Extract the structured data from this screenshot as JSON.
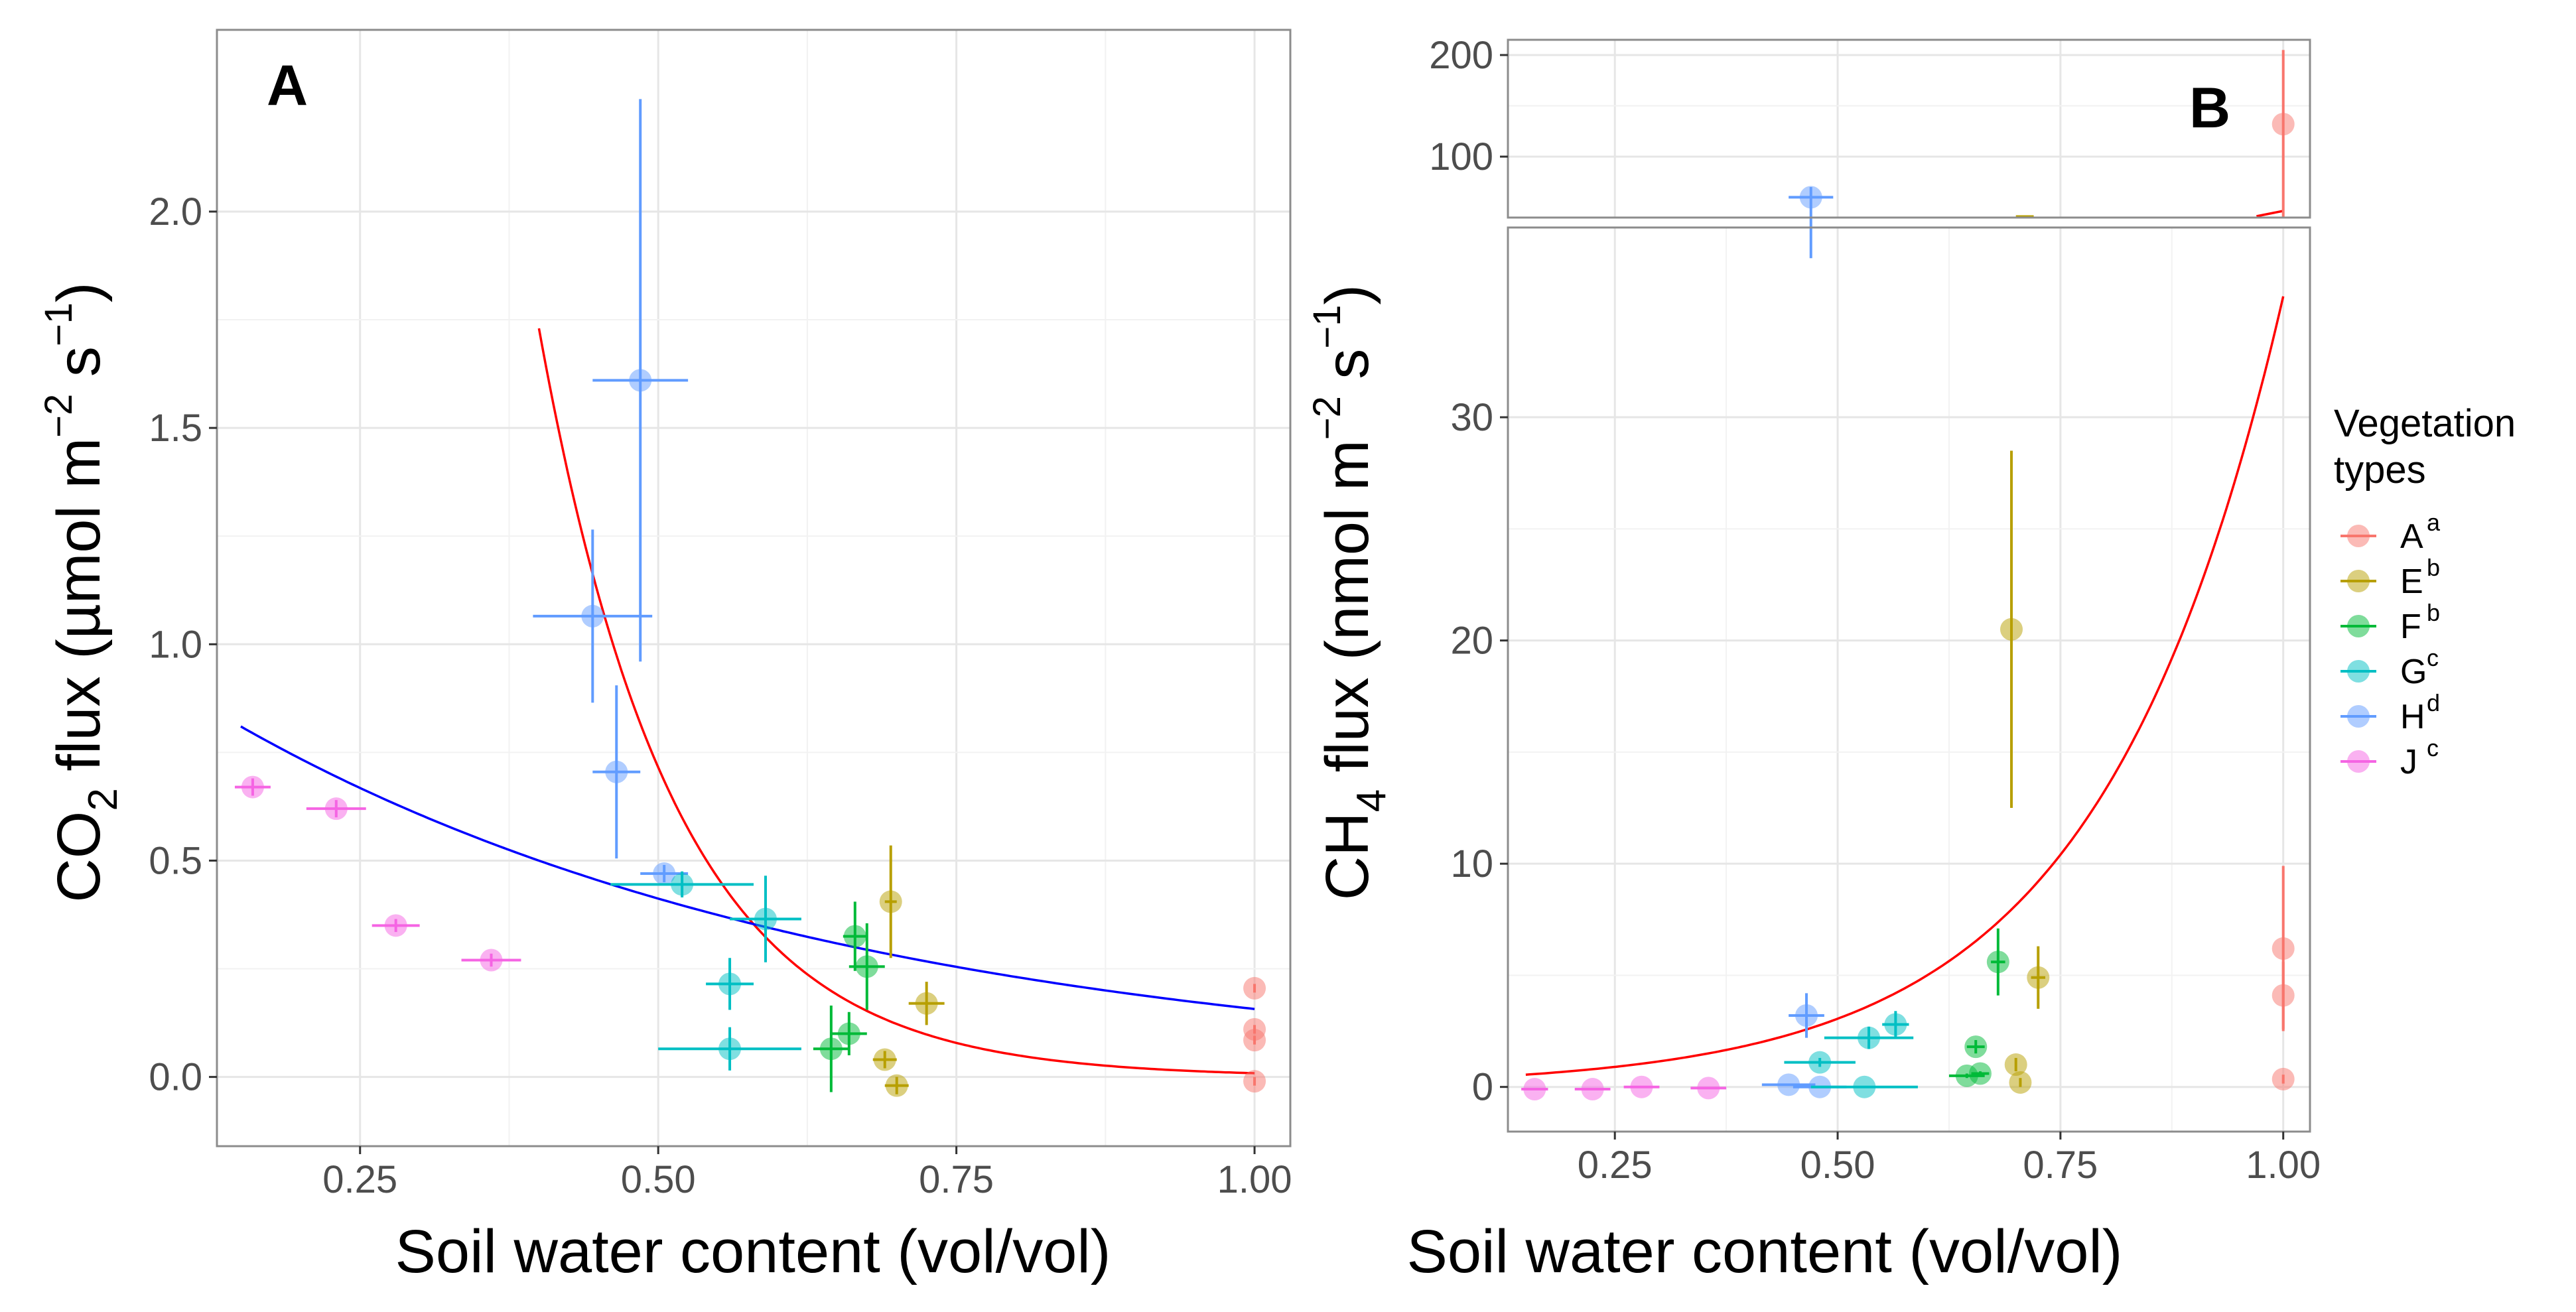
{
  "colors": {
    "A": "#F8766D",
    "E": "#B79F00",
    "F": "#00BA38",
    "G": "#00BFC4",
    "H": "#619CFF",
    "J": "#F564E3",
    "red_fit": "#FF0000",
    "blue_fit": "#0000FF",
    "grid": "#e6e6e6",
    "frame": "#8c8c8c"
  },
  "legend": {
    "title_line1": "Vegetation",
    "title_line2": "types",
    "items": [
      {
        "key": "A",
        "label": "A",
        "sup": "a"
      },
      {
        "key": "E",
        "label": "E",
        "sup": "b"
      },
      {
        "key": "F",
        "label": "F",
        "sup": "b"
      },
      {
        "key": "G",
        "label": "G",
        "sup": "c"
      },
      {
        "key": "H",
        "label": "H",
        "sup": "d"
      },
      {
        "key": "J",
        "label": "J",
        "sup": "c"
      }
    ]
  },
  "chart_data": [
    {
      "panel": "A",
      "type": "scatter",
      "xlabel": "Soil water content (vol/vol)",
      "ylabel": {
        "pre": "CO",
        "sub": "2",
        "mid": " flux (µmol  m",
        "sup1": "−2",
        "gap": " s",
        "sup2": "−1",
        "post": ")"
      },
      "xlim": [
        0.13,
        1.03
      ],
      "ylim": [
        -0.16,
        2.42
      ],
      "xticks": [
        0.25,
        0.5,
        0.75,
        1.0
      ],
      "xtick_labels": [
        "0.25",
        "0.50",
        "0.75",
        "1.00"
      ],
      "yticks": [
        0.0,
        0.5,
        1.0,
        1.5,
        2.0
      ],
      "ytick_labels": [
        "0.0",
        "0.5",
        "1.0",
        "1.5",
        "2.0"
      ],
      "points": [
        {
          "g": "J",
          "x": 0.16,
          "y": 0.67,
          "xe": 0.015,
          "ye": 0.02
        },
        {
          "g": "J",
          "x": 0.23,
          "y": 0.62,
          "xe": 0.025,
          "ye": 0.02
        },
        {
          "g": "J",
          "x": 0.28,
          "y": 0.35,
          "xe": 0.02,
          "ye": 0.015
        },
        {
          "g": "J",
          "x": 0.36,
          "y": 0.27,
          "xe": 0.025,
          "ye": 0.015
        },
        {
          "g": "H",
          "x": 0.445,
          "y": 1.065,
          "xe": 0.05,
          "ye": 0.2
        },
        {
          "g": "H",
          "x": 0.465,
          "y": 0.705,
          "xe": 0.02,
          "ye": 0.2
        },
        {
          "g": "H",
          "x": 0.485,
          "y": 1.61,
          "xe": 0.04,
          "ye": 0.65
        },
        {
          "g": "H",
          "x": 0.505,
          "y": 0.47,
          "xe": 0.02,
          "ye": 0.02
        },
        {
          "g": "G",
          "x": 0.52,
          "y": 0.445,
          "xe": 0.06,
          "ye": 0.03
        },
        {
          "g": "G",
          "x": 0.56,
          "y": 0.065,
          "xe": 0.06,
          "ye": 0.05
        },
        {
          "g": "G",
          "x": 0.56,
          "y": 0.215,
          "xe": 0.02,
          "ye": 0.06
        },
        {
          "g": "G",
          "x": 0.59,
          "y": 0.365,
          "xe": 0.03,
          "ye": 0.1
        },
        {
          "g": "F",
          "x": 0.645,
          "y": 0.065,
          "xe": 0.015,
          "ye": 0.1
        },
        {
          "g": "F",
          "x": 0.66,
          "y": 0.1,
          "xe": 0.015,
          "ye": 0.05
        },
        {
          "g": "F",
          "x": 0.665,
          "y": 0.325,
          "xe": 0.01,
          "ye": 0.08
        },
        {
          "g": "F",
          "x": 0.675,
          "y": 0.255,
          "xe": 0.015,
          "ye": 0.1
        },
        {
          "g": "E",
          "x": 0.69,
          "y": 0.04,
          "xe": 0.01,
          "ye": 0.02
        },
        {
          "g": "E",
          "x": 0.695,
          "y": 0.405,
          "xe": 0.005,
          "ye": 0.13
        },
        {
          "g": "E",
          "x": 0.7,
          "y": -0.02,
          "xe": 0.01,
          "ye": 0.02
        },
        {
          "g": "E",
          "x": 0.725,
          "y": 0.17,
          "xe": 0.015,
          "ye": 0.05
        },
        {
          "g": "A",
          "x": 1.0,
          "y": 0.205,
          "xe": 0,
          "ye": 0.01
        },
        {
          "g": "A",
          "x": 1.0,
          "y": 0.11,
          "xe": 0,
          "ye": 0.01
        },
        {
          "g": "A",
          "x": 1.0,
          "y": 0.085,
          "xe": 0,
          "ye": 0.01
        },
        {
          "g": "A",
          "x": 1.0,
          "y": -0.01,
          "xe": 0,
          "ye": 0.01
        }
      ],
      "fits": [
        {
          "name": "red_fit",
          "x_from": 0.4,
          "x_to": 1.0,
          "a": 1.73,
          "b": -8.83,
          "x0": 0.4
        },
        {
          "name": "blue_fit",
          "x_from": 0.15,
          "x_to": 1.0,
          "a": 0.81,
          "b": -1.93,
          "x0": 0.15
        }
      ]
    },
    {
      "panel": "B",
      "type": "scatter",
      "xlabel": "Soil water content (vol/vol)",
      "ylabel": {
        "pre": "CH",
        "sub": "4",
        "mid": " flux (nmol  m",
        "sup1": "−2",
        "gap": " s",
        "sup2": "−1",
        "post": ")"
      },
      "xlim": [
        0.13,
        1.03
      ],
      "ylim": [
        -2,
        38.5
      ],
      "ylim_top": [
        40,
        215
      ],
      "xticks": [
        0.25,
        0.5,
        0.75,
        1.0
      ],
      "xtick_labels": [
        "0.25",
        "0.50",
        "0.75",
        "1.00"
      ],
      "yticks": [
        0,
        10,
        20,
        30
      ],
      "ytick_labels": [
        "0",
        "10",
        "20",
        "30"
      ],
      "yticks_top": [
        100,
        200
      ],
      "ytick_labels_top": [
        "100",
        "200"
      ],
      "points": [
        {
          "g": "J",
          "x": 0.16,
          "y": -0.1,
          "xe": 0.015,
          "ye": 0
        },
        {
          "g": "J",
          "x": 0.225,
          "y": -0.1,
          "xe": 0.02,
          "ye": 0
        },
        {
          "g": "J",
          "x": 0.28,
          "y": 0.0,
          "xe": 0.02,
          "ye": 0
        },
        {
          "g": "J",
          "x": 0.355,
          "y": -0.05,
          "xe": 0.02,
          "ye": 0
        },
        {
          "g": "H",
          "x": 0.445,
          "y": 0.1,
          "xe": 0.03,
          "ye": 0
        },
        {
          "g": "H",
          "x": 0.465,
          "y": 3.2,
          "xe": 0.02,
          "ye": 1.0
        },
        {
          "g": "H",
          "x": 0.48,
          "y": 0.0,
          "xe": 0.03,
          "ye": 0
        },
        {
          "g": "G",
          "x": 0.48,
          "y": 1.1,
          "xe": 0.04,
          "ye": 0.2
        },
        {
          "g": "G",
          "x": 0.53,
          "y": 0.0,
          "xe": 0.06,
          "ye": 0
        },
        {
          "g": "G",
          "x": 0.535,
          "y": 2.2,
          "xe": 0.05,
          "ye": 0.5
        },
        {
          "g": "G",
          "x": 0.565,
          "y": 2.8,
          "xe": 0.015,
          "ye": 0.6
        },
        {
          "g": "F",
          "x": 0.645,
          "y": 0.5,
          "xe": 0.02,
          "ye": 0.1
        },
        {
          "g": "F",
          "x": 0.655,
          "y": 1.8,
          "xe": 0.01,
          "ye": 0.3
        },
        {
          "g": "F",
          "x": 0.66,
          "y": 0.6,
          "xe": 0.01,
          "ye": 0.1
        },
        {
          "g": "F",
          "x": 0.68,
          "y": 5.6,
          "xe": 0.008,
          "ye": 1.5
        },
        {
          "g": "E",
          "x": 0.695,
          "y": 20.5,
          "xe": 0,
          "ye": 8.0
        },
        {
          "g": "E",
          "x": 0.7,
          "y": 1.0,
          "xe": 0,
          "ye": 0.3
        },
        {
          "g": "E",
          "x": 0.705,
          "y": 0.2,
          "xe": 0,
          "ye": 0.2
        },
        {
          "g": "E",
          "x": 0.725,
          "y": 4.9,
          "xe": 0.008,
          "ye": 1.4
        },
        {
          "g": "A",
          "x": 1.0,
          "y": 6.2,
          "xe": 0,
          "ye": 3.7
        },
        {
          "g": "A",
          "x": 1.0,
          "y": 4.1,
          "xe": 0,
          "ye": 1.5
        },
        {
          "g": "A",
          "x": 1.0,
          "y": 0.35,
          "xe": 0,
          "ye": 0.2
        }
      ],
      "points_top": [
        {
          "g": "H",
          "x": 0.47,
          "y": 60,
          "xe": 0.025,
          "ye_lo": 60,
          "ye_hi": 10
        },
        {
          "g": "A",
          "x": 1.0,
          "y": 132,
          "xe": 0,
          "ye_lo": 92,
          "ye_hi": 73
        }
      ],
      "fits": [
        {
          "name": "red_fit",
          "x_from": 0.15,
          "x_to": 1.0,
          "a": 0.55,
          "b": 4.9,
          "x0": 0.15
        }
      ]
    }
  ]
}
